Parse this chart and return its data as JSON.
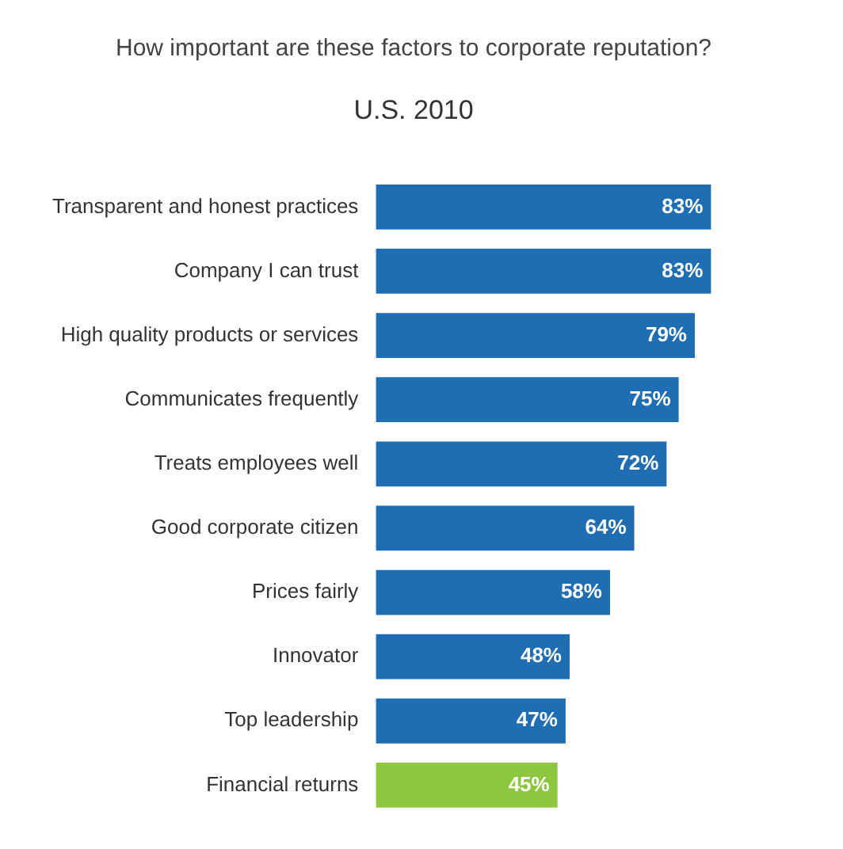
{
  "chart_data": {
    "type": "bar",
    "orientation": "horizontal",
    "title": "How important are these factors to corporate reputation?",
    "subtitle": "U.S. 2010",
    "categories": [
      "Transparent and honest practices",
      "Company I can trust",
      "High quality products or services",
      "Communicates frequently",
      "Treats employees well",
      "Good corporate citizen",
      "Prices fairly",
      "Innovator",
      "Top leadership",
      "Financial returns"
    ],
    "values": [
      83,
      83,
      79,
      75,
      72,
      64,
      58,
      48,
      47,
      45
    ],
    "colors": [
      "#1f6db3",
      "#1f6db3",
      "#1f6db3",
      "#1f6db3",
      "#1f6db3",
      "#1f6db3",
      "#1f6db3",
      "#1f6db3",
      "#1f6db3",
      "#8dc63f"
    ],
    "value_labels": [
      "83%",
      "83%",
      "79%",
      "75%",
      "72%",
      "64%",
      "58%",
      "48%",
      "47%",
      "45%"
    ],
    "tick_labels": "y",
    "legend": false
  }
}
